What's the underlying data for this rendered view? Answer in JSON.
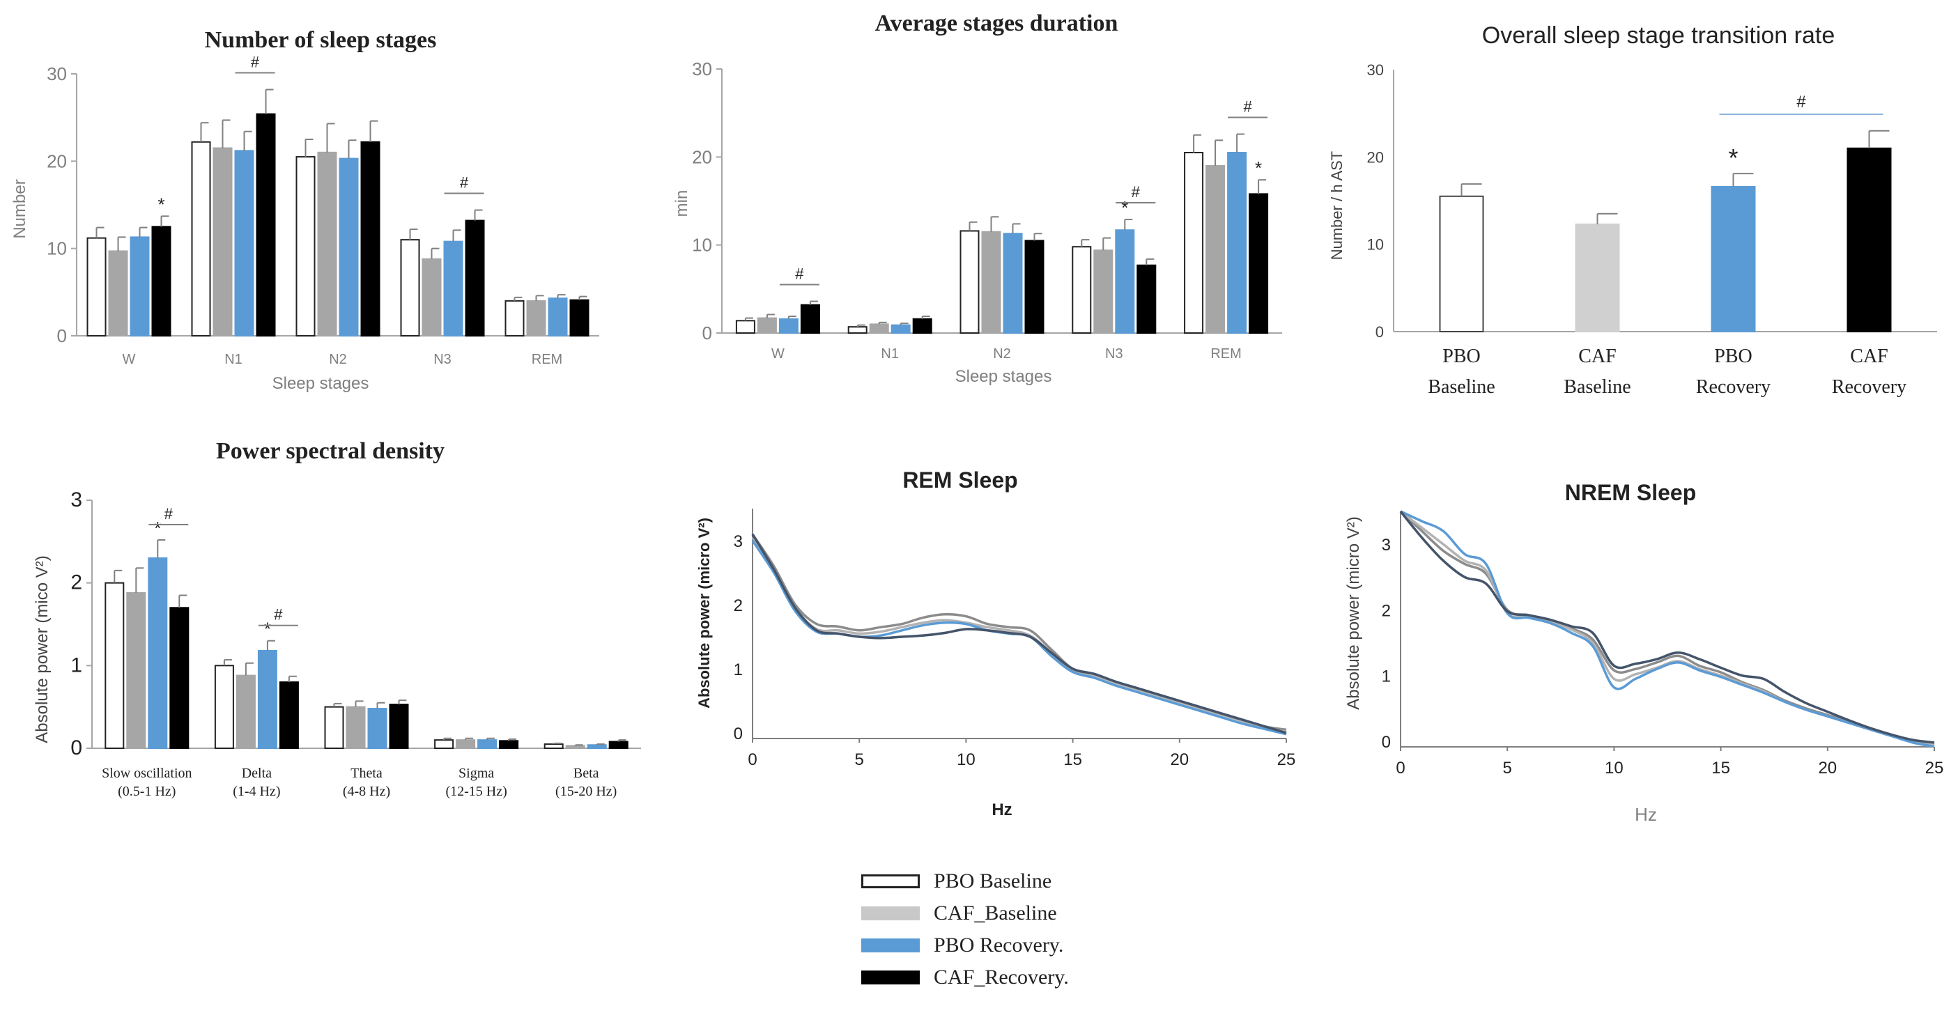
{
  "colors": {
    "pbo_baseline": "#ffffff",
    "caf_baseline": "#a6a6a6",
    "pbo_recovery": "#5b9bd5",
    "caf_recovery": "#000000",
    "axis": "#a6a6a6",
    "text": "#222222"
  },
  "legend": {
    "items": [
      {
        "label": "PBO  Baseline",
        "color": "#ffffff"
      },
      {
        "label": "CAF_Baseline",
        "color": "#c8c8c8"
      },
      {
        "label": "PBO  Recovery.",
        "color": "#5b9bd5"
      },
      {
        "label": "CAF_Recovery.",
        "color": "#000000"
      }
    ]
  },
  "chart_data": [
    {
      "type": "bar",
      "title": "Number of sleep stages",
      "ylabel": "Number",
      "xlabel": "Sleep stages",
      "ylim": [
        0,
        30
      ],
      "yticks": [
        "0",
        "10",
        "20",
        "30"
      ],
      "categories": [
        "W",
        "N1",
        "N2",
        "N3",
        "REM"
      ],
      "series": [
        {
          "name": "PBO Baseline",
          "values": [
            11.2,
            22.2,
            20.5,
            11.0,
            4.0
          ],
          "errors": [
            1.2,
            2.2,
            2.0,
            1.2,
            0.4
          ]
        },
        {
          "name": "CAF Baseline",
          "values": [
            9.7,
            21.5,
            21.0,
            8.8,
            4.0
          ],
          "errors": [
            1.6,
            3.2,
            3.3,
            1.2,
            0.6
          ]
        },
        {
          "name": "PBO Recovery",
          "values": [
            11.3,
            21.2,
            20.3,
            10.8,
            4.3
          ],
          "errors": [
            1.1,
            2.2,
            2.1,
            1.3,
            0.4
          ]
        },
        {
          "name": "CAF Recovery",
          "values": [
            12.5,
            25.4,
            22.2,
            13.2,
            4.1
          ],
          "errors": [
            1.2,
            2.8,
            2.4,
            1.2,
            0.4
          ]
        }
      ],
      "annotations": [
        {
          "text": "*",
          "category": 0,
          "series": 3
        },
        {
          "text": "#",
          "category": 1,
          "bracket": [
            2,
            3
          ]
        },
        {
          "text": "#",
          "category": 3,
          "bracket": [
            2,
            3
          ]
        }
      ]
    },
    {
      "type": "bar",
      "title": "Average stages duration",
      "ylabel": "min",
      "xlabel": "Sleep stages",
      "ylim": [
        0,
        30
      ],
      "yticks": [
        "0",
        "10",
        "20",
        "30"
      ],
      "categories": [
        "W",
        "N1",
        "N2",
        "N3",
        "REM"
      ],
      "series": [
        {
          "name": "PBO Baseline",
          "values": [
            1.4,
            0.7,
            11.6,
            9.8,
            20.5
          ],
          "errors": [
            0.3,
            0.2,
            1.0,
            0.8,
            2.0
          ]
        },
        {
          "name": "CAF Baseline",
          "values": [
            1.7,
            1.0,
            11.5,
            9.4,
            19.0
          ],
          "errors": [
            0.4,
            0.2,
            1.7,
            1.4,
            2.9
          ]
        },
        {
          "name": "PBO Recovery",
          "values": [
            1.6,
            0.9,
            11.3,
            11.7,
            20.5
          ],
          "errors": [
            0.3,
            0.2,
            1.1,
            1.2,
            2.1
          ]
        },
        {
          "name": "CAF Recovery",
          "values": [
            3.2,
            1.6,
            10.5,
            7.7,
            15.8
          ],
          "errors": [
            0.4,
            0.3,
            0.8,
            0.7,
            1.6
          ]
        }
      ],
      "annotations": [
        {
          "text": "#",
          "category": 0,
          "bracket": [
            2,
            3
          ]
        },
        {
          "text": "*",
          "category": 3,
          "series": 2
        },
        {
          "text": "#",
          "category": 3,
          "bracket": [
            2,
            3
          ]
        },
        {
          "text": "*",
          "category": 4,
          "series": 3
        },
        {
          "text": "#",
          "category": 4,
          "bracket": [
            2,
            3
          ]
        }
      ]
    },
    {
      "type": "bar",
      "title": "Overall sleep stage transition rate",
      "ylabel": "Number / h AST",
      "ylim": [
        0,
        30
      ],
      "yticks": [
        "0",
        "10",
        "20",
        "30"
      ],
      "categories": [
        "PBO\nBaseline",
        "CAF\nBaseline",
        "PBO\nRecovery",
        "CAF\nRecovery"
      ],
      "values": [
        15.5,
        12.3,
        16.6,
        21.0
      ],
      "errors": [
        1.4,
        1.2,
        1.5,
        2.0
      ],
      "annotations": [
        {
          "text": "*",
          "category": 2
        },
        {
          "text": "#",
          "bracket_categories": [
            2,
            3
          ]
        }
      ]
    },
    {
      "type": "bar",
      "title": "Power spectral density",
      "ylabel": "Absolute power (mico V²)",
      "ylim": [
        0,
        3
      ],
      "yticks": [
        "0",
        "1",
        "2",
        "3"
      ],
      "categories": [
        "Slow oscillation\n(0.5-1  Hz)",
        "Delta\n(1-4  Hz)",
        "Theta\n(4-8  Hz)",
        "Sigma\n(12-15  Hz)",
        "Beta\n(15-20  Hz)"
      ],
      "series": [
        {
          "name": "PBO Baseline",
          "values": [
            2.0,
            1.0,
            0.5,
            0.1,
            0.05
          ],
          "errors": [
            0.15,
            0.07,
            0.04,
            0.02,
            0.01
          ]
        },
        {
          "name": "CAF Baseline",
          "values": [
            1.88,
            0.88,
            0.5,
            0.1,
            0.03
          ],
          "errors": [
            0.3,
            0.15,
            0.07,
            0.02,
            0.01
          ]
        },
        {
          "name": "PBO Recovery",
          "values": [
            2.3,
            1.18,
            0.48,
            0.1,
            0.04
          ],
          "errors": [
            0.22,
            0.12,
            0.07,
            0.02,
            0.01
          ]
        },
        {
          "name": "CAF Recovery",
          "values": [
            1.7,
            0.8,
            0.53,
            0.09,
            0.08
          ],
          "errors": [
            0.15,
            0.07,
            0.05,
            0.02,
            0.02
          ]
        }
      ],
      "annotations": [
        {
          "text": "*",
          "category": 0,
          "series": 2
        },
        {
          "text": "#",
          "category": 0,
          "bracket": [
            2,
            3
          ]
        },
        {
          "text": "*",
          "category": 1,
          "series": 2
        },
        {
          "text": "#",
          "category": 1,
          "bracket": [
            2,
            3
          ]
        }
      ]
    },
    {
      "type": "line",
      "title": "REM Sleep",
      "xlabel": "Hz",
      "ylabel": "Absolute power (micro V²)",
      "xlim": [
        0,
        25
      ],
      "ylim": [
        0,
        3.5
      ],
      "xticks": [
        "0",
        "5",
        "10",
        "15",
        "20",
        "25"
      ],
      "yticks": [
        "0",
        "1",
        "2",
        "3"
      ],
      "x": [
        0,
        1,
        2,
        3,
        4,
        5,
        6,
        7,
        8,
        9,
        10,
        11,
        12,
        13,
        14,
        15,
        16,
        17,
        18,
        19,
        20,
        21,
        22,
        23,
        24,
        25
      ],
      "series": [
        {
          "name": "PBO Baseline",
          "color": "#8c8c8c",
          "values": [
            3.1,
            2.6,
            2.0,
            1.7,
            1.66,
            1.6,
            1.65,
            1.7,
            1.8,
            1.85,
            1.82,
            1.7,
            1.65,
            1.6,
            1.3,
            1.0,
            0.92,
            0.8,
            0.7,
            0.6,
            0.5,
            0.4,
            0.3,
            0.2,
            0.1,
            0.05
          ]
        },
        {
          "name": "CAF Baseline",
          "color": "#b3b3b3",
          "values": [
            3.05,
            2.55,
            1.95,
            1.62,
            1.6,
            1.55,
            1.58,
            1.65,
            1.72,
            1.76,
            1.72,
            1.65,
            1.6,
            1.52,
            1.25,
            0.98,
            0.9,
            0.78,
            0.68,
            0.58,
            0.48,
            0.38,
            0.28,
            0.18,
            0.08,
            0.02
          ]
        },
        {
          "name": "PBO Recovery",
          "color": "#5b9bd5",
          "values": [
            3.0,
            2.5,
            1.9,
            1.58,
            1.55,
            1.5,
            1.52,
            1.6,
            1.68,
            1.72,
            1.7,
            1.6,
            1.55,
            1.5,
            1.2,
            0.95,
            0.86,
            0.74,
            0.64,
            0.54,
            0.44,
            0.34,
            0.24,
            0.14,
            0.06,
            -0.02
          ]
        },
        {
          "name": "CAF Recovery",
          "color": "#44546a",
          "values": [
            3.1,
            2.55,
            1.95,
            1.6,
            1.55,
            1.5,
            1.48,
            1.5,
            1.52,
            1.56,
            1.62,
            1.6,
            1.56,
            1.5,
            1.25,
            1.0,
            0.92,
            0.8,
            0.7,
            0.6,
            0.5,
            0.4,
            0.3,
            0.2,
            0.1,
            0.0
          ]
        }
      ]
    },
    {
      "type": "line",
      "title": "NREM Sleep",
      "xlabel": "Hz",
      "ylabel": "Absolute power (micro V²)",
      "xlim": [
        0,
        25
      ],
      "ylim": [
        0,
        3.5
      ],
      "xticks": [
        "0",
        "5",
        "10",
        "15",
        "20",
        "25"
      ],
      "yticks": [
        "0",
        "1",
        "2",
        "3"
      ],
      "x": [
        0,
        1,
        2,
        3,
        4,
        5,
        6,
        7,
        8,
        9,
        10,
        11,
        12,
        13,
        14,
        15,
        16,
        17,
        18,
        19,
        20,
        21,
        22,
        23,
        24,
        25
      ],
      "series": [
        {
          "name": "PBO Baseline",
          "color": "#8c8c8c",
          "values": [
            3.5,
            3.2,
            2.9,
            2.7,
            2.55,
            2.0,
            1.92,
            1.85,
            1.72,
            1.55,
            1.08,
            1.1,
            1.2,
            1.3,
            1.15,
            1.05,
            0.9,
            0.78,
            0.62,
            0.5,
            0.4,
            0.3,
            0.2,
            0.1,
            0.0,
            -0.05
          ]
        },
        {
          "name": "CAF Baseline",
          "color": "#b3b3b3",
          "values": [
            3.5,
            3.25,
            3.0,
            2.75,
            2.6,
            1.95,
            1.9,
            1.82,
            1.7,
            1.5,
            0.95,
            1.02,
            1.12,
            1.22,
            1.1,
            1.0,
            0.88,
            0.76,
            0.6,
            0.48,
            0.38,
            0.28,
            0.18,
            0.08,
            0.0,
            -0.05
          ]
        },
        {
          "name": "PBO Recovery",
          "color": "#5b9bd5",
          "values": [
            3.5,
            3.35,
            3.2,
            2.85,
            2.7,
            1.95,
            1.88,
            1.8,
            1.65,
            1.45,
            0.82,
            0.95,
            1.1,
            1.2,
            1.08,
            0.98,
            0.86,
            0.74,
            0.6,
            0.48,
            0.38,
            0.28,
            0.18,
            0.08,
            -0.02,
            -0.08
          ]
        },
        {
          "name": "CAF Recovery",
          "color": "#44546a",
          "values": [
            3.5,
            3.1,
            2.75,
            2.5,
            2.4,
            1.98,
            1.92,
            1.85,
            1.75,
            1.65,
            1.15,
            1.18,
            1.25,
            1.35,
            1.25,
            1.12,
            1.0,
            0.95,
            0.75,
            0.58,
            0.45,
            0.32,
            0.2,
            0.1,
            0.02,
            -0.02
          ]
        }
      ]
    }
  ]
}
